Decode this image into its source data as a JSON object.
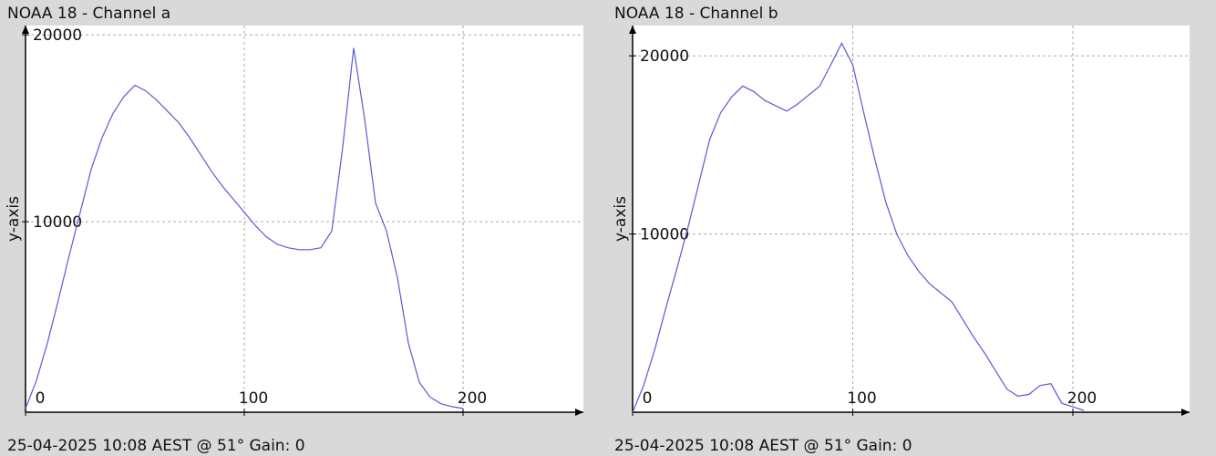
{
  "chart_data": [
    {
      "type": "line",
      "title": "NOAA 18 - Channel a",
      "ylabel": "y-axis",
      "footer": "25-04-2025 10:08 AEST @ 51° Gain: 0",
      "x": [
        0,
        5,
        10,
        15,
        20,
        25,
        30,
        35,
        40,
        45,
        50,
        55,
        60,
        65,
        70,
        75,
        80,
        85,
        90,
        95,
        100,
        105,
        110,
        115,
        120,
        125,
        130,
        135,
        140,
        145,
        150,
        155,
        160,
        165,
        170,
        175,
        180,
        185,
        190,
        195,
        200
      ],
      "values": [
        0,
        1500,
        3500,
        5800,
        8200,
        10500,
        12800,
        14500,
        15800,
        16700,
        17300,
        17000,
        16500,
        15900,
        15300,
        14500,
        13600,
        12700,
        11900,
        11200,
        10500,
        9800,
        9200,
        8800,
        8600,
        8500,
        8500,
        8600,
        9500,
        14000,
        19300,
        15500,
        11000,
        9500,
        7000,
        3500,
        1400,
        600,
        250,
        100,
        0
      ],
      "color": "#5a5ad6",
      "xlim": [
        0,
        255
      ],
      "ylim": [
        -200,
        20500
      ],
      "xticks": [
        0,
        100,
        200
      ],
      "yticks": [
        10000,
        20000
      ],
      "grid": true
    },
    {
      "type": "line",
      "title": "NOAA 18 - Channel b",
      "ylabel": "y-axis",
      "footer": "25-04-2025 10:08 AEST @ 51° Gain: 0",
      "x": [
        0,
        5,
        10,
        15,
        20,
        25,
        30,
        35,
        40,
        45,
        50,
        55,
        60,
        65,
        70,
        75,
        80,
        85,
        90,
        95,
        100,
        105,
        110,
        115,
        120,
        125,
        130,
        135,
        140,
        145,
        150,
        155,
        160,
        165,
        170,
        175,
        180,
        185,
        190,
        195,
        200,
        205
      ],
      "values": [
        0,
        1500,
        3500,
        5800,
        8000,
        10300,
        12800,
        15300,
        16800,
        17700,
        18300,
        18000,
        17500,
        17200,
        16900,
        17300,
        17800,
        18300,
        19500,
        20700,
        19500,
        16800,
        14200,
        11800,
        10000,
        8800,
        7900,
        7200,
        6700,
        6200,
        5200,
        4200,
        3300,
        2300,
        1300,
        900,
        1000,
        1500,
        1600,
        500,
        300,
        100
      ],
      "color": "#5a5ad6",
      "xlim": [
        0,
        253
      ],
      "ylim": [
        0,
        21700
      ],
      "xticks": [
        0,
        100,
        200
      ],
      "yticks": [
        10000,
        20000
      ],
      "grid": true
    }
  ]
}
